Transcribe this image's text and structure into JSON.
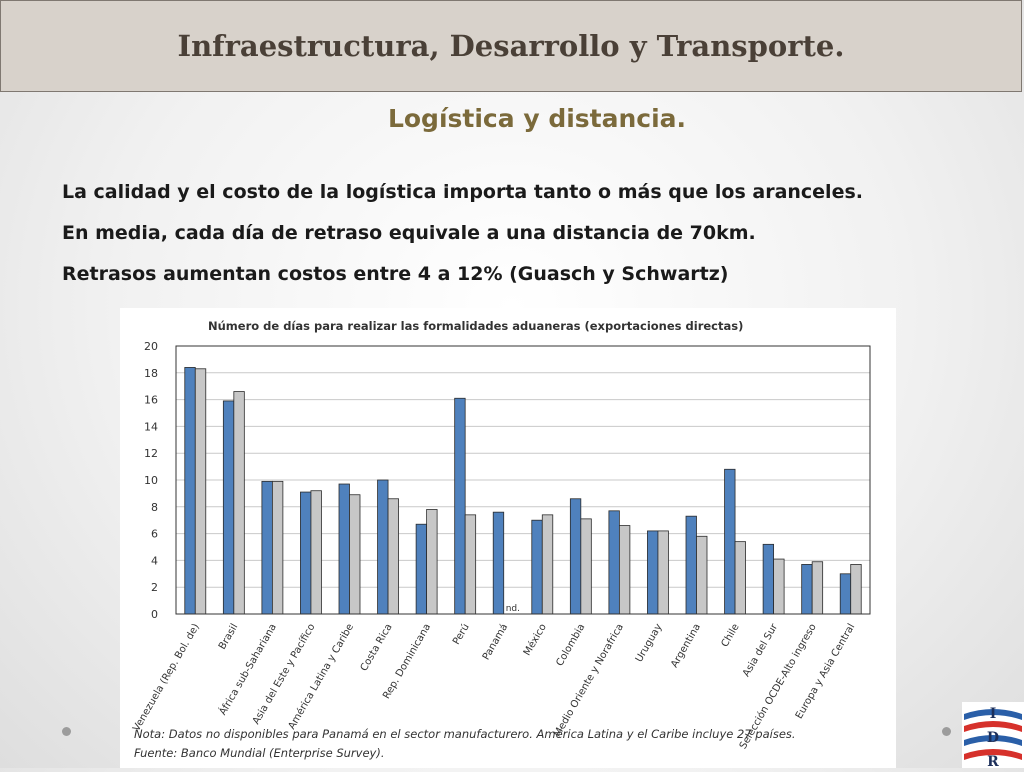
{
  "slide": {
    "title": "Infraestructura, Desarrollo y Transporte.",
    "subtitle": "Logística y distancia.",
    "bullets": [
      "La calidad y el costo de la logística importa tanto o más que los aranceles.",
      "En media, cada día de retraso equivale a una distancia de 70km.",
      "Retrasos aumentan costos entre 4 a 12% (Guasch y Schwartz)"
    ],
    "logo_text": "IDR"
  },
  "chart_data": {
    "type": "bar",
    "title": "Número de días para realizar las formalidades aduaneras (exportaciones directas)",
    "xlabel": "",
    "ylabel": "",
    "ylim": [
      0,
      20
    ],
    "yticks": [
      0,
      2,
      4,
      6,
      8,
      10,
      12,
      14,
      16,
      18,
      20
    ],
    "grid": true,
    "categories": [
      "Venezuela (Rep. Bol. de)",
      "Brasil",
      "África sub-Sahariana",
      "Asia del Este y Pacífico",
      "América Latina y Caribe",
      "Costa Rica",
      "Rep. Dominicana",
      "Perú",
      "Panamá",
      "México",
      "Colombia",
      "Medio Oriente y Norafrica",
      "Uruguay",
      "Argentina",
      "Chile",
      "Asia del Sur",
      "Selección OCDE-Alto ingreso",
      "Europa y Asia Central"
    ],
    "series": [
      {
        "values": [
          18.4,
          15.9,
          9.9,
          9.1,
          9.7,
          10.0,
          6.7,
          16.1,
          7.6,
          7.0,
          8.6,
          7.7,
          6.2,
          7.3,
          10.8,
          5.2,
          3.7,
          3.0
        ],
        "color": "#4f81bd"
      },
      {
        "values": [
          18.3,
          16.6,
          9.9,
          9.2,
          8.9,
          8.6,
          7.8,
          7.4,
          null,
          7.4,
          7.1,
          6.6,
          6.2,
          5.8,
          5.4,
          4.1,
          3.9,
          3.7
        ],
        "color": "#c7c7c7"
      }
    ],
    "annotations": [
      "nd."
    ],
    "note": "Nota: Datos no disponibles para Panamá en el sector manufacturero. América Latina y el Caribe incluye 27 países.",
    "source": "Fuente: Banco Mundial (Enterprise Survey)."
  }
}
